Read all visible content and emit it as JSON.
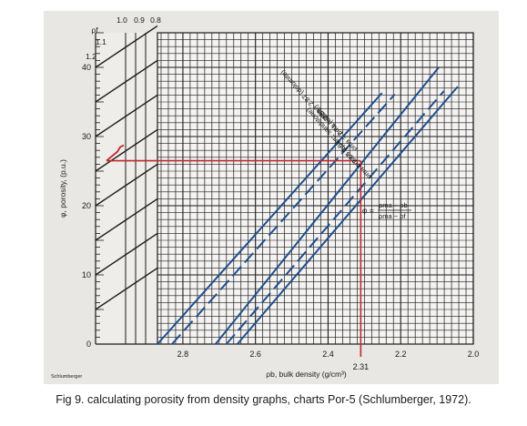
{
  "caption": "Fig 9. calculating  porosity from density graphs, charts Por-5 (Schlumberger, 1972).",
  "brand": "Schlumberger",
  "colors": {
    "grid": "#1a1a1a",
    "background": "#e9e7e4",
    "matrix_lines": "#1f4e8c",
    "reading": "#c0282d"
  },
  "chart_data": {
    "type": "line",
    "xlabel": "ρb, bulk density (g/cm³)",
    "ylabel": "φ, porosity, (p.u.)",
    "xlim": [
      2.0,
      2.87
    ],
    "ylim": [
      0,
      45
    ],
    "x_reversed": true,
    "x_ticks": [
      "2.8",
      "2.6",
      "2.4",
      "2.2",
      "2.0"
    ],
    "y_ticks": [
      "0",
      "10",
      "20",
      "30",
      "40"
    ],
    "grid": true,
    "equation": {
      "lhs": "φ =",
      "numerator": "ρma − ρb",
      "denominator": "ρma − ρf"
    },
    "fluid_density": {
      "label": "ρf",
      "values": [
        "1.2",
        "1.1",
        "1.0",
        "0.9",
        "0.8"
      ]
    },
    "series": [
      {
        "name": "ρma = 2.87 (dolomite)",
        "style": "solid",
        "points": [
          [
            2.87,
            0
          ],
          [
            2.2515,
            36.3
          ]
        ]
      },
      {
        "name": "ρma = 2.83",
        "style": "dashed",
        "points": [
          [
            2.83,
            0
          ],
          [
            2.2163,
            36.1
          ]
        ]
      },
      {
        "name": "ρma = 2.71 (calcite)",
        "style": "solid",
        "points": [
          [
            2.71,
            0
          ],
          [
            2.0952,
            40.0
          ]
        ]
      },
      {
        "name": "ρma = 2.68",
        "style": "dashed",
        "points": [
          [
            2.68,
            0
          ],
          [
            2.0806,
            36.6
          ]
        ]
      },
      {
        "name": "ρma = 2.65 (quartz sandstone)",
        "style": "solid",
        "points": [
          [
            2.65,
            0
          ],
          [
            2.0431,
            37.2
          ]
        ]
      }
    ],
    "reading": {
      "bulk_density": 2.31,
      "porosity": 26.5,
      "label": "2.31"
    }
  }
}
